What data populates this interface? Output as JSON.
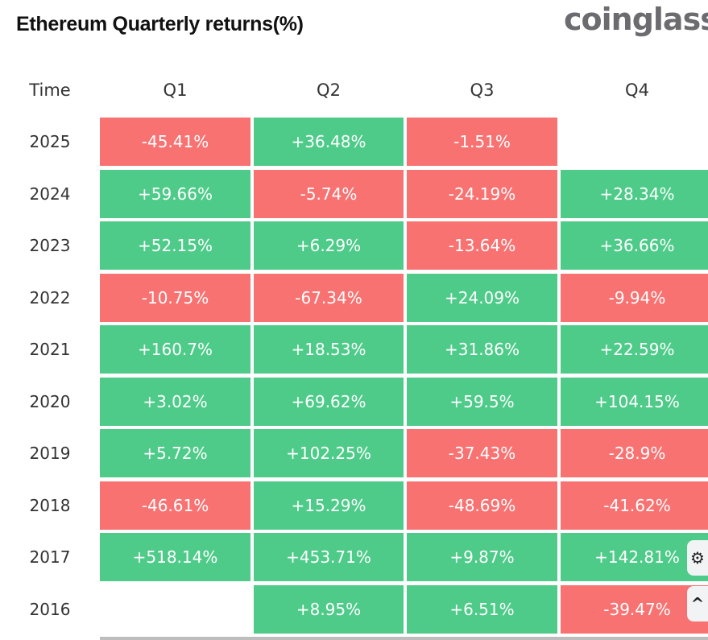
{
  "header": {
    "title": "Ethereum Quarterly returns(%)",
    "logo": "coinglass"
  },
  "colors": {
    "positive": "#4ecb89",
    "negative": "#f87272",
    "text": "#ffffff"
  },
  "floating_buttons": [
    {
      "icon": "feedback-badge-icon"
    },
    {
      "icon": "chevron-up-icon"
    }
  ],
  "chart_data": {
    "type": "table",
    "title": "Ethereum Quarterly returns(%)",
    "columns": [
      "Time",
      "Q1",
      "Q2",
      "Q3",
      "Q4"
    ],
    "rows": [
      {
        "year": "2025",
        "values": [
          "-45.41%",
          "+36.48%",
          "-1.51%",
          null
        ]
      },
      {
        "year": "2024",
        "values": [
          "+59.66%",
          "-5.74%",
          "-24.19%",
          "+28.34%"
        ]
      },
      {
        "year": "2023",
        "values": [
          "+52.15%",
          "+6.29%",
          "-13.64%",
          "+36.66%"
        ]
      },
      {
        "year": "2022",
        "values": [
          "-10.75%",
          "-67.34%",
          "+24.09%",
          "-9.94%"
        ]
      },
      {
        "year": "2021",
        "values": [
          "+160.7%",
          "+18.53%",
          "+31.86%",
          "+22.59%"
        ]
      },
      {
        "year": "2020",
        "values": [
          "+3.02%",
          "+69.62%",
          "+59.5%",
          "+104.15%"
        ]
      },
      {
        "year": "2019",
        "values": [
          "+5.72%",
          "+102.25%",
          "-37.43%",
          "-28.9%"
        ]
      },
      {
        "year": "2018",
        "values": [
          "-46.61%",
          "+15.29%",
          "-48.69%",
          "-41.62%"
        ]
      },
      {
        "year": "2017",
        "values": [
          "+518.14%",
          "+453.71%",
          "+9.87%",
          "+142.81%"
        ]
      },
      {
        "year": "2016",
        "values": [
          null,
          "+8.95%",
          "+6.51%",
          "-39.47%"
        ]
      }
    ]
  }
}
